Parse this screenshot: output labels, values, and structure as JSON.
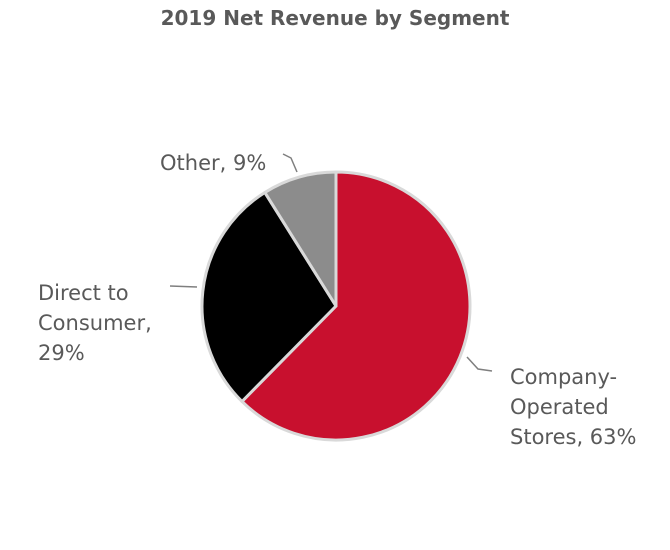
{
  "chart_data": {
    "type": "pie",
    "title": "2019 Net Revenue by Segment",
    "slices": [
      {
        "label": "Company-Operated Stores",
        "value": 63,
        "color": "#c8102e",
        "label_lines": [
          "Company-",
          "Operated",
          "Stores, 63%"
        ]
      },
      {
        "label": "Direct to Consumer",
        "value": 29,
        "color": "#000000",
        "label_lines": [
          "Direct to",
          "Consumer,",
          "29%"
        ]
      },
      {
        "label": "Other",
        "value": 9,
        "color": "#8c8c8c",
        "label_lines": [
          "Other, 9%"
        ]
      }
    ],
    "slice_border_color": "#d9d9d9",
    "legend": "none",
    "data_labels": "outside with leader lines"
  }
}
